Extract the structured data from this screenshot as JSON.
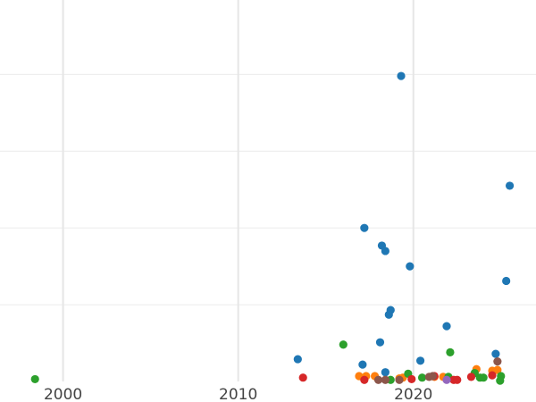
{
  "chart_data": {
    "type": "scatter",
    "title": "",
    "xlabel": "",
    "ylabel": "",
    "xlim": [
      1996.4,
      2027.0
    ],
    "ylim": [
      0,
      4.97
    ],
    "grid": true,
    "legend": "none",
    "x_ticks": [
      2000,
      2010,
      2020
    ],
    "x_tick_labels": [
      "2000",
      "2010",
      "2020"
    ],
    "y_gridlines": [
      1,
      2,
      3,
      4
    ],
    "series": [
      {
        "color": "#1f77b4",
        "points": [
          [
            2019.3,
            3.98
          ],
          [
            2025.5,
            2.55
          ],
          [
            2017.2,
            2.0
          ],
          [
            2018.2,
            1.77
          ],
          [
            2018.4,
            1.7
          ],
          [
            2019.8,
            1.5
          ],
          [
            2025.3,
            1.31
          ],
          [
            2018.7,
            0.93
          ],
          [
            2018.6,
            0.87
          ],
          [
            2021.9,
            0.72
          ],
          [
            2018.1,
            0.51
          ],
          [
            2013.4,
            0.29
          ],
          [
            2020.4,
            0.27
          ],
          [
            2017.1,
            0.22
          ],
          [
            2024.7,
            0.36
          ],
          [
            2018.4,
            0.12
          ]
        ]
      },
      {
        "color": "#ff7f0e",
        "points": [
          [
            2016.9,
            0.07
          ],
          [
            2017.3,
            0.07
          ],
          [
            2017.8,
            0.07
          ],
          [
            2019.2,
            0.04
          ],
          [
            2019.4,
            0.05
          ],
          [
            2023.6,
            0.16
          ],
          [
            2024.5,
            0.14
          ],
          [
            2024.8,
            0.15
          ],
          [
            2021.2,
            0.06
          ],
          [
            2021.7,
            0.06
          ]
        ]
      },
      {
        "color": "#2ca02c",
        "points": [
          [
            2016.0,
            0.48
          ],
          [
            2022.1,
            0.38
          ],
          [
            1998.4,
            0.03
          ],
          [
            2019.7,
            0.1
          ],
          [
            2018.7,
            0.02
          ],
          [
            2020.5,
            0.05
          ],
          [
            2022.0,
            0.06
          ],
          [
            2023.5,
            0.11
          ],
          [
            2023.8,
            0.05
          ],
          [
            2024.0,
            0.05
          ],
          [
            2025.0,
            0.07
          ],
          [
            2024.95,
            0.01
          ]
        ]
      },
      {
        "color": "#d62728",
        "points": [
          [
            2013.7,
            0.05
          ],
          [
            2017.2,
            0.02
          ],
          [
            2019.9,
            0.03
          ],
          [
            2021.2,
            0.07
          ],
          [
            2022.3,
            0.02
          ],
          [
            2022.5,
            0.02
          ],
          [
            2023.3,
            0.06
          ],
          [
            2024.5,
            0.08
          ]
        ]
      },
      {
        "color": "#9467bd",
        "points": [
          [
            2021.9,
            0.02
          ]
        ]
      },
      {
        "color": "#8c564b",
        "points": [
          [
            2024.8,
            0.26
          ],
          [
            2018.0,
            0.02
          ],
          [
            2018.4,
            0.02
          ],
          [
            2019.2,
            0.02
          ],
          [
            2020.9,
            0.06
          ],
          [
            2021.1,
            0.07
          ]
        ]
      }
    ]
  }
}
